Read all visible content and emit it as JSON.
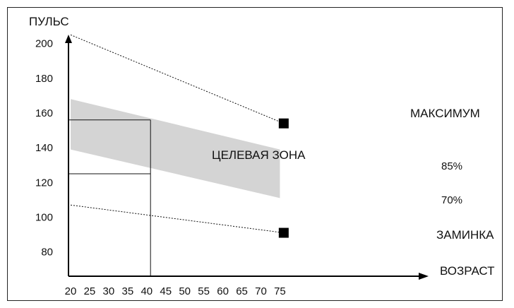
{
  "chart_data": {
    "type": "line",
    "ylabel": "ПУЛЬС",
    "xlabel": "ВОЗРАСТ",
    "x_ticks": [
      20,
      25,
      30,
      35,
      40,
      45,
      50,
      55,
      60,
      65,
      70,
      75
    ],
    "y_ticks": [
      80,
      100,
      120,
      140,
      160,
      180,
      200
    ],
    "xlim": [
      19.5,
      79.5
    ],
    "ylim": [
      66,
      222
    ],
    "series": [
      {
        "name": "МАКСИМУМ",
        "style": "dotted",
        "x": [
          20,
          76
        ],
        "y": [
          205,
          154
        ]
      },
      {
        "name": "ЗАМИНКА",
        "style": "dotted",
        "x": [
          20,
          76
        ],
        "y": [
          107,
          91
        ]
      }
    ],
    "markers": [
      {
        "label": "МАКСИМУМ",
        "x": 76,
        "y": 154
      },
      {
        "label": "ЗАМИНКА",
        "x": 76,
        "y": 91
      }
    ],
    "zone": {
      "label": "ЦЕЛЕВАЯ ЗОНА",
      "upper_label": "85%",
      "lower_label": "70%",
      "x": [
        20,
        75
      ],
      "upper": [
        168,
        139
      ],
      "lower": [
        139,
        111
      ]
    },
    "example_age": 41,
    "example_lines": [
      {
        "age": 41,
        "y": 156
      },
      {
        "age": 41,
        "y": 125
      }
    ],
    "label_positions_x": 75.5,
    "zone_label_x": 41.5,
    "zone_label_y": 131,
    "upper_label_y": 129,
    "lower_label_y": 109,
    "colors": {
      "zone_fill": "#d4d4d4",
      "axis": "#000000",
      "marker": "#000000"
    }
  }
}
